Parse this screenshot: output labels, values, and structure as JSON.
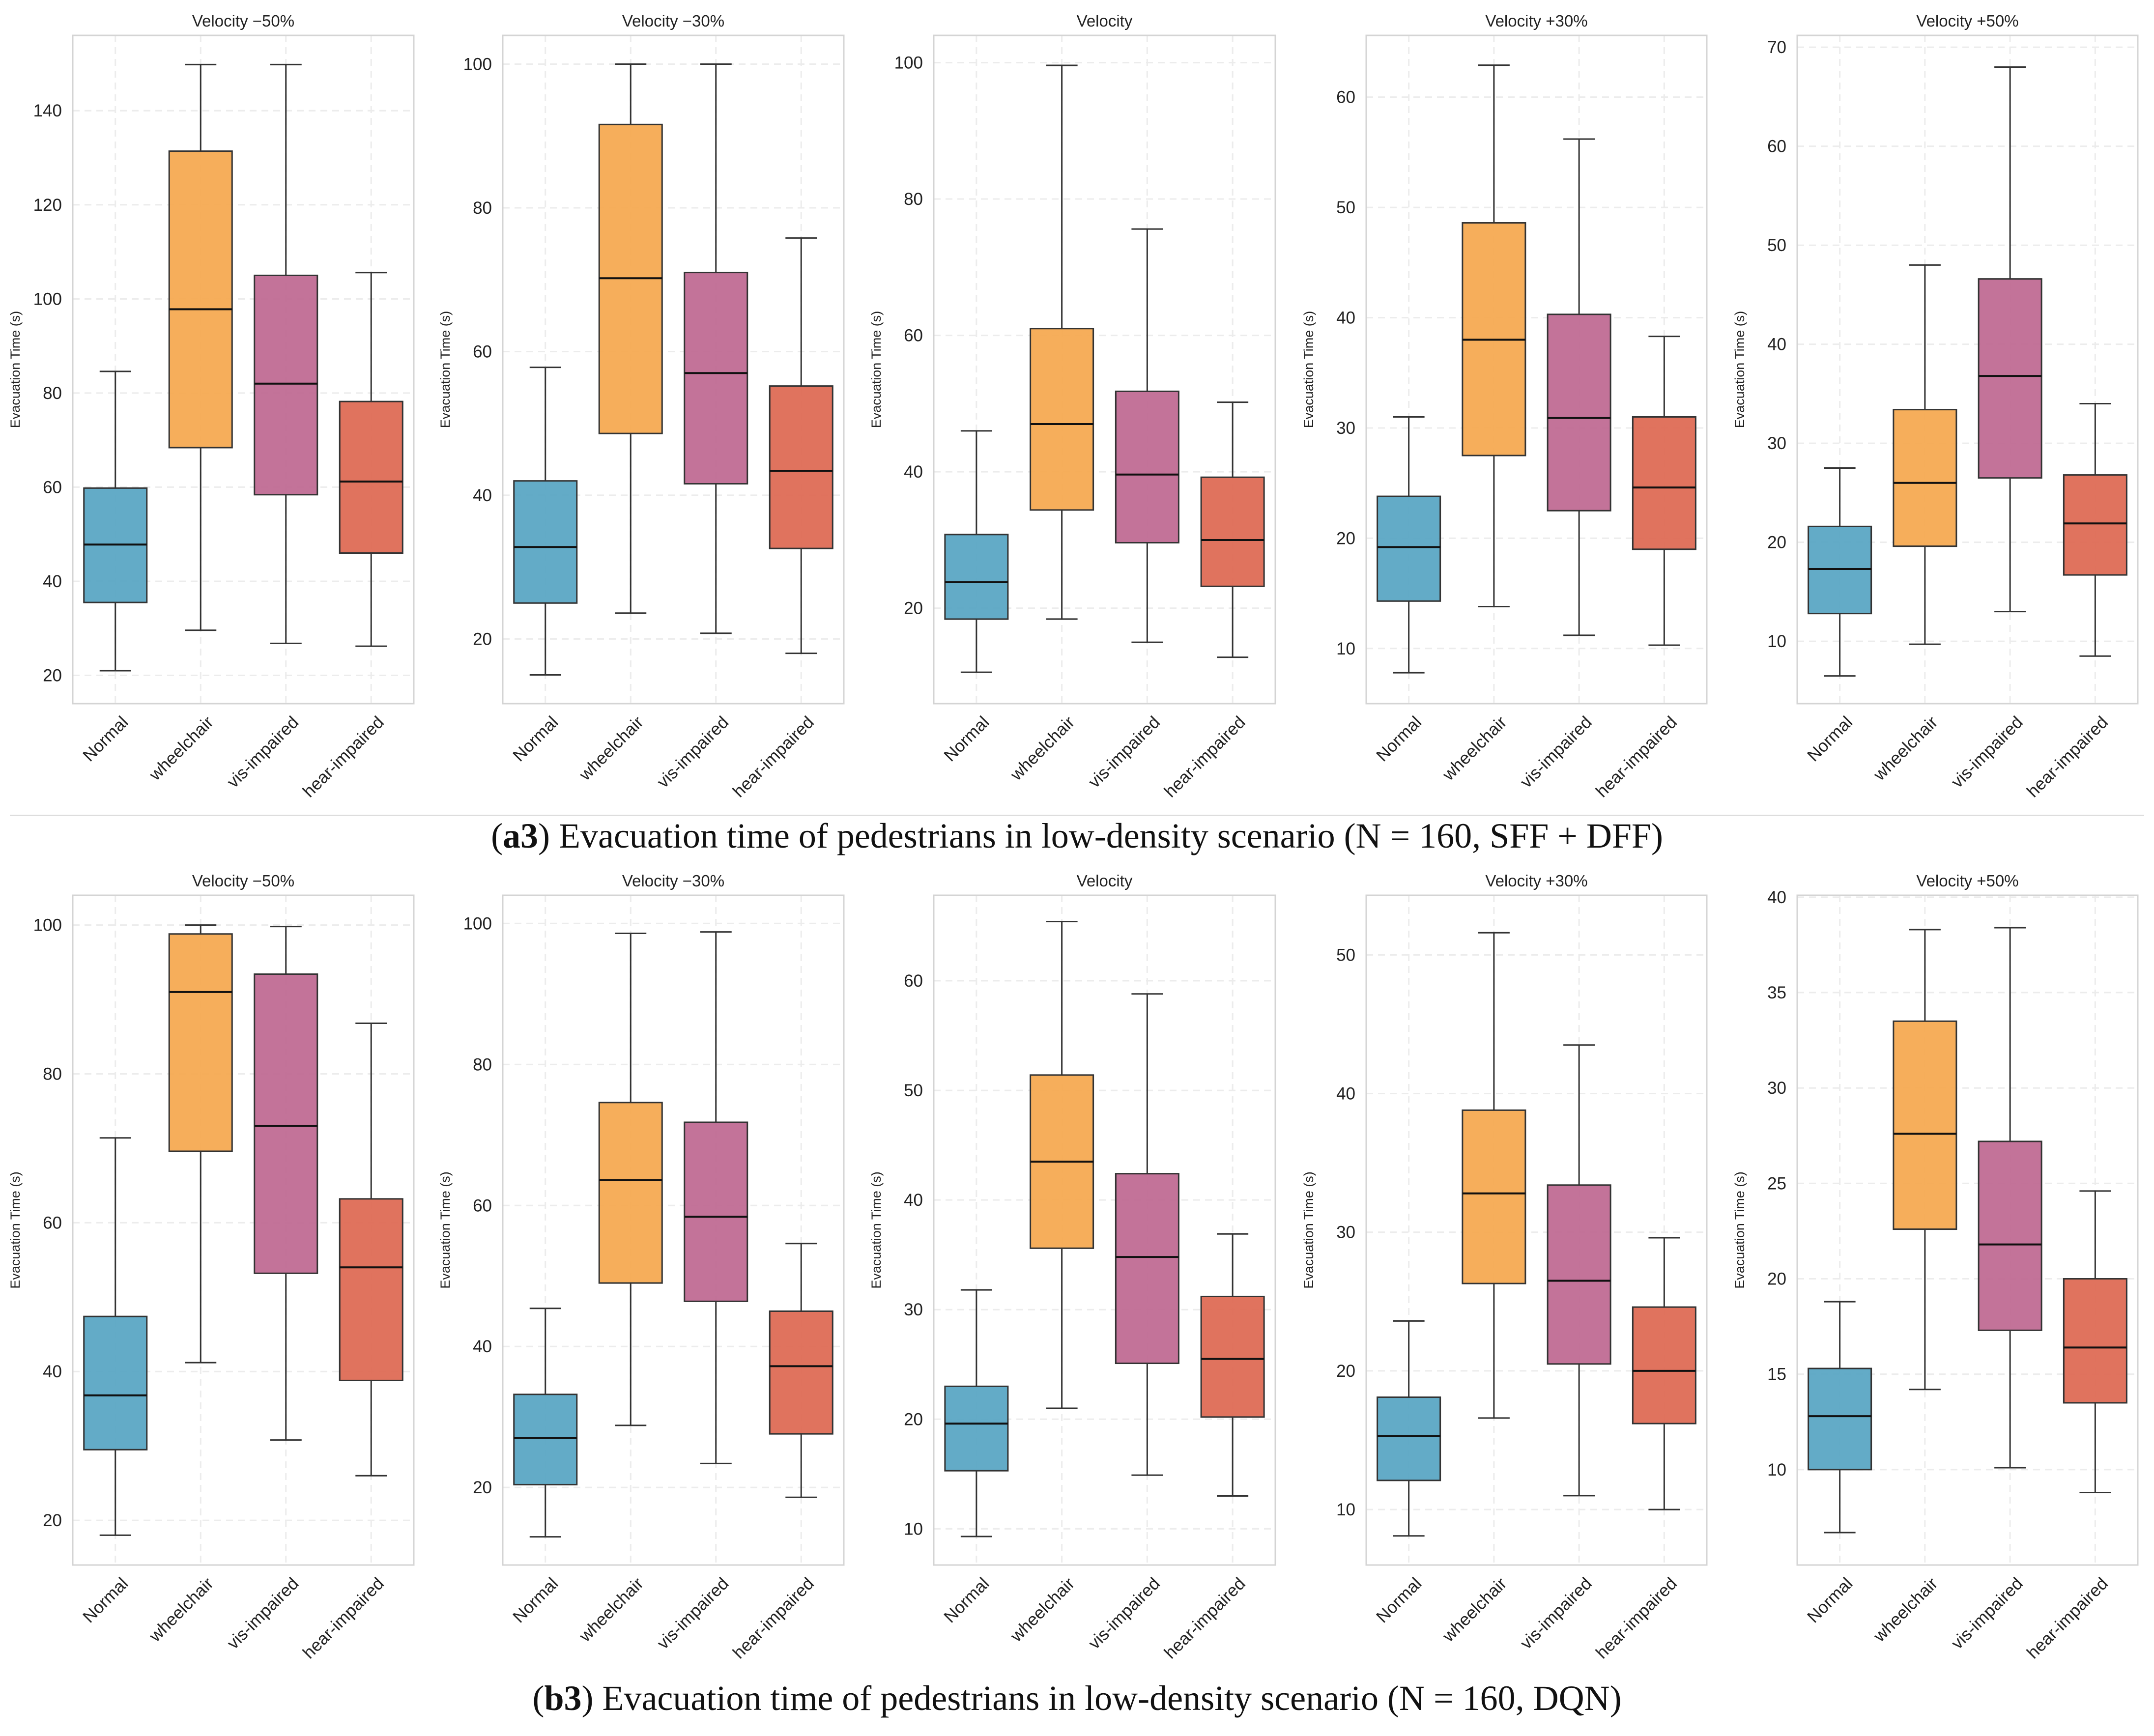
{
  "figure_title": "Evacuation time of pedestrians in low-density scenario: SFF + DFF vs DQN",
  "colors": {
    "normal": "#5ba7c4",
    "wheelchair": "#f5aa52",
    "vis_impaired": "#c06b93",
    "hear_impaired": "#de6b55",
    "axes_frame": "#d4d4d4",
    "grid": "#ececec",
    "whisker": "#333333"
  },
  "captions": {
    "a3": {
      "label": "a3",
      "text": " Evacuation time of pedestrians in low-density scenario (N = 160, SFF + DFF)"
    },
    "b3": {
      "label": "b3",
      "text": " Evacuation time of pedestrians in low-density scenario (N = 160, DQN)"
    }
  },
  "chart_data": [
    {
      "type": "box",
      "group": "a3",
      "title": "Velocity −50%",
      "ylabel": "Evacuation Time (s)",
      "categories": [
        "Normal",
        "wheelchair",
        "vis-impaired",
        "hear-impaired"
      ],
      "ylim": [
        14,
        156
      ],
      "yticks": [
        20,
        40,
        60,
        80,
        100,
        120,
        140
      ],
      "boxes": [
        {
          "min": 21,
          "q1": 35.5,
          "median": 47.8,
          "q3": 59.8,
          "max": 84.6
        },
        {
          "min": 29.6,
          "q1": 68.4,
          "median": 97.8,
          "q3": 131.4,
          "max": 149.8
        },
        {
          "min": 26.8,
          "q1": 58.4,
          "median": 82,
          "q3": 105,
          "max": 149.8
        },
        {
          "min": 26.2,
          "q1": 46,
          "median": 61.2,
          "q3": 78.2,
          "max": 105.6
        }
      ]
    },
    {
      "type": "box",
      "group": "a3",
      "title": "Velocity −30%",
      "ylabel": "Evacuation Time (s)",
      "categories": [
        "Normal",
        "wheelchair",
        "vis-impaired",
        "hear-impaired"
      ],
      "ylim": [
        11,
        104
      ],
      "yticks": [
        20,
        40,
        60,
        80,
        100
      ],
      "boxes": [
        {
          "min": 15,
          "q1": 25,
          "median": 32.8,
          "q3": 42,
          "max": 57.8
        },
        {
          "min": 23.6,
          "q1": 48.6,
          "median": 70.2,
          "q3": 91.6,
          "max": 100
        },
        {
          "min": 20.8,
          "q1": 41.6,
          "median": 57,
          "q3": 71,
          "max": 100
        },
        {
          "min": 18,
          "q1": 32.6,
          "median": 43.4,
          "q3": 55.2,
          "max": 75.8
        }
      ]
    },
    {
      "type": "box",
      "group": "a3",
      "title": "Velocity",
      "ylabel": "Evacuation Time (s)",
      "categories": [
        "Normal",
        "wheelchair",
        "vis-impaired",
        "hear-impaired"
      ],
      "ylim": [
        6,
        104
      ],
      "yticks": [
        20,
        40,
        60,
        80,
        100
      ],
      "boxes": [
        {
          "min": 10.6,
          "q1": 18.4,
          "median": 23.8,
          "q3": 30.8,
          "max": 46
        },
        {
          "min": 18.4,
          "q1": 34.4,
          "median": 47,
          "q3": 61,
          "max": 99.6
        },
        {
          "min": 15,
          "q1": 29.6,
          "median": 39.6,
          "q3": 51.8,
          "max": 75.6
        },
        {
          "min": 12.8,
          "q1": 23.2,
          "median": 30,
          "q3": 39.2,
          "max": 50.2
        }
      ]
    },
    {
      "type": "box",
      "group": "a3",
      "title": "Velocity +30%",
      "ylabel": "Evacuation Time (s)",
      "categories": [
        "Normal",
        "wheelchair",
        "vis-impaired",
        "hear-impaired"
      ],
      "ylim": [
        5,
        65.6
      ],
      "yticks": [
        10,
        20,
        30,
        40,
        50,
        60
      ],
      "boxes": [
        {
          "min": 7.8,
          "q1": 14.3,
          "median": 19.2,
          "q3": 23.8,
          "max": 31
        },
        {
          "min": 13.8,
          "q1": 27.5,
          "median": 38,
          "q3": 48.6,
          "max": 62.9
        },
        {
          "min": 11.2,
          "q1": 22.5,
          "median": 30.9,
          "q3": 40.3,
          "max": 56.2
        },
        {
          "min": 10.3,
          "q1": 19,
          "median": 24.6,
          "q3": 31,
          "max": 38.3
        }
      ]
    },
    {
      "type": "box",
      "group": "a3",
      "title": "Velocity +50%",
      "ylabel": "Evacuation Time (s)",
      "categories": [
        "Normal",
        "wheelchair",
        "vis-impaired",
        "hear-impaired"
      ],
      "ylim": [
        3.7,
        71.2
      ],
      "yticks": [
        10,
        20,
        30,
        40,
        50,
        60,
        70
      ],
      "boxes": [
        {
          "min": 6.5,
          "q1": 12.8,
          "median": 17.3,
          "q3": 21.6,
          "max": 27.5
        },
        {
          "min": 9.7,
          "q1": 19.6,
          "median": 26,
          "q3": 33.4,
          "max": 48
        },
        {
          "min": 13,
          "q1": 26.5,
          "median": 36.8,
          "q3": 46.6,
          "max": 68
        },
        {
          "min": 8.5,
          "q1": 16.7,
          "median": 21.9,
          "q3": 26.8,
          "max": 34
        }
      ]
    },
    {
      "type": "box",
      "group": "b3",
      "title": "Velocity −50%",
      "ylabel": "Evacuation Time (s)",
      "categories": [
        "Normal",
        "wheelchair",
        "vis-impaired",
        "hear-impaired"
      ],
      "ylim": [
        14,
        104
      ],
      "yticks": [
        20,
        40,
        60,
        80,
        100
      ],
      "boxes": [
        {
          "min": 18,
          "q1": 29.5,
          "median": 36.8,
          "q3": 47.4,
          "max": 71.4
        },
        {
          "min": 41.2,
          "q1": 69.6,
          "median": 91,
          "q3": 98.8,
          "max": 100
        },
        {
          "min": 30.8,
          "q1": 53.2,
          "median": 73,
          "q3": 93.4,
          "max": 99.8
        },
        {
          "min": 26,
          "q1": 38.8,
          "median": 54,
          "q3": 63.2,
          "max": 86.8
        }
      ]
    },
    {
      "type": "box",
      "group": "b3",
      "title": "Velocity −30%",
      "ylabel": "Evacuation Time (s)",
      "categories": [
        "Normal",
        "wheelchair",
        "vis-impaired",
        "hear-impaired"
      ],
      "ylim": [
        9,
        104
      ],
      "yticks": [
        20,
        40,
        60,
        80,
        100
      ],
      "boxes": [
        {
          "min": 13,
          "q1": 20.4,
          "median": 27,
          "q3": 33.2,
          "max": 45.4
        },
        {
          "min": 28.8,
          "q1": 49,
          "median": 63.6,
          "q3": 74.6,
          "max": 98.6
        },
        {
          "min": 23.4,
          "q1": 46.4,
          "median": 58.4,
          "q3": 71.8,
          "max": 98.8
        },
        {
          "min": 18.6,
          "q1": 27.6,
          "median": 37.2,
          "q3": 45,
          "max": 54.6
        }
      ]
    },
    {
      "type": "box",
      "group": "b3",
      "title": "Velocity",
      "ylabel": "Evacuation Time (s)",
      "categories": [
        "Normal",
        "wheelchair",
        "vis-impaired",
        "hear-impaired"
      ],
      "ylim": [
        6.7,
        67.8
      ],
      "yticks": [
        10,
        20,
        30,
        40,
        50,
        60
      ],
      "boxes": [
        {
          "min": 9.3,
          "q1": 15.3,
          "median": 19.6,
          "q3": 23,
          "max": 31.8
        },
        {
          "min": 21,
          "q1": 35.6,
          "median": 43.5,
          "q3": 51.4,
          "max": 65.4
        },
        {
          "min": 14.9,
          "q1": 25.1,
          "median": 34.8,
          "q3": 42.4,
          "max": 58.8
        },
        {
          "min": 13,
          "q1": 20.2,
          "median": 25.5,
          "q3": 31.2,
          "max": 36.9
        }
      ]
    },
    {
      "type": "box",
      "group": "b3",
      "title": "Velocity +30%",
      "ylabel": "Evacuation Time (s)",
      "categories": [
        "Normal",
        "wheelchair",
        "vis-impaired",
        "hear-impaired"
      ],
      "ylim": [
        6,
        54.3
      ],
      "yticks": [
        10,
        20,
        30,
        40,
        50
      ],
      "boxes": [
        {
          "min": 8.1,
          "q1": 12.1,
          "median": 15.3,
          "q3": 18.1,
          "max": 23.6
        },
        {
          "min": 16.6,
          "q1": 26.3,
          "median": 32.8,
          "q3": 38.8,
          "max": 51.6
        },
        {
          "min": 11,
          "q1": 20.5,
          "median": 26.5,
          "q3": 33.4,
          "max": 43.5
        },
        {
          "min": 10,
          "q1": 16.2,
          "median": 20,
          "q3": 24.6,
          "max": 29.6
        }
      ]
    },
    {
      "type": "box",
      "group": "b3",
      "title": "Velocity +50%",
      "ylabel": "Evacuation Time (s)",
      "categories": [
        "Normal",
        "wheelchair",
        "vis-impaired",
        "hear-impaired"
      ],
      "ylim": [
        5,
        40.1
      ],
      "yticks": [
        10,
        15,
        20,
        25,
        30,
        35,
        40
      ],
      "boxes": [
        {
          "min": 6.7,
          "q1": 10,
          "median": 12.8,
          "q3": 15.3,
          "max": 18.8
        },
        {
          "min": 14.2,
          "q1": 22.6,
          "median": 27.6,
          "q3": 33.5,
          "max": 38.3
        },
        {
          "min": 10.1,
          "q1": 17.3,
          "median": 21.8,
          "q3": 27.2,
          "max": 38.4
        },
        {
          "min": 8.8,
          "q1": 13.5,
          "median": 16.4,
          "q3": 20,
          "max": 24.6
        }
      ]
    }
  ]
}
